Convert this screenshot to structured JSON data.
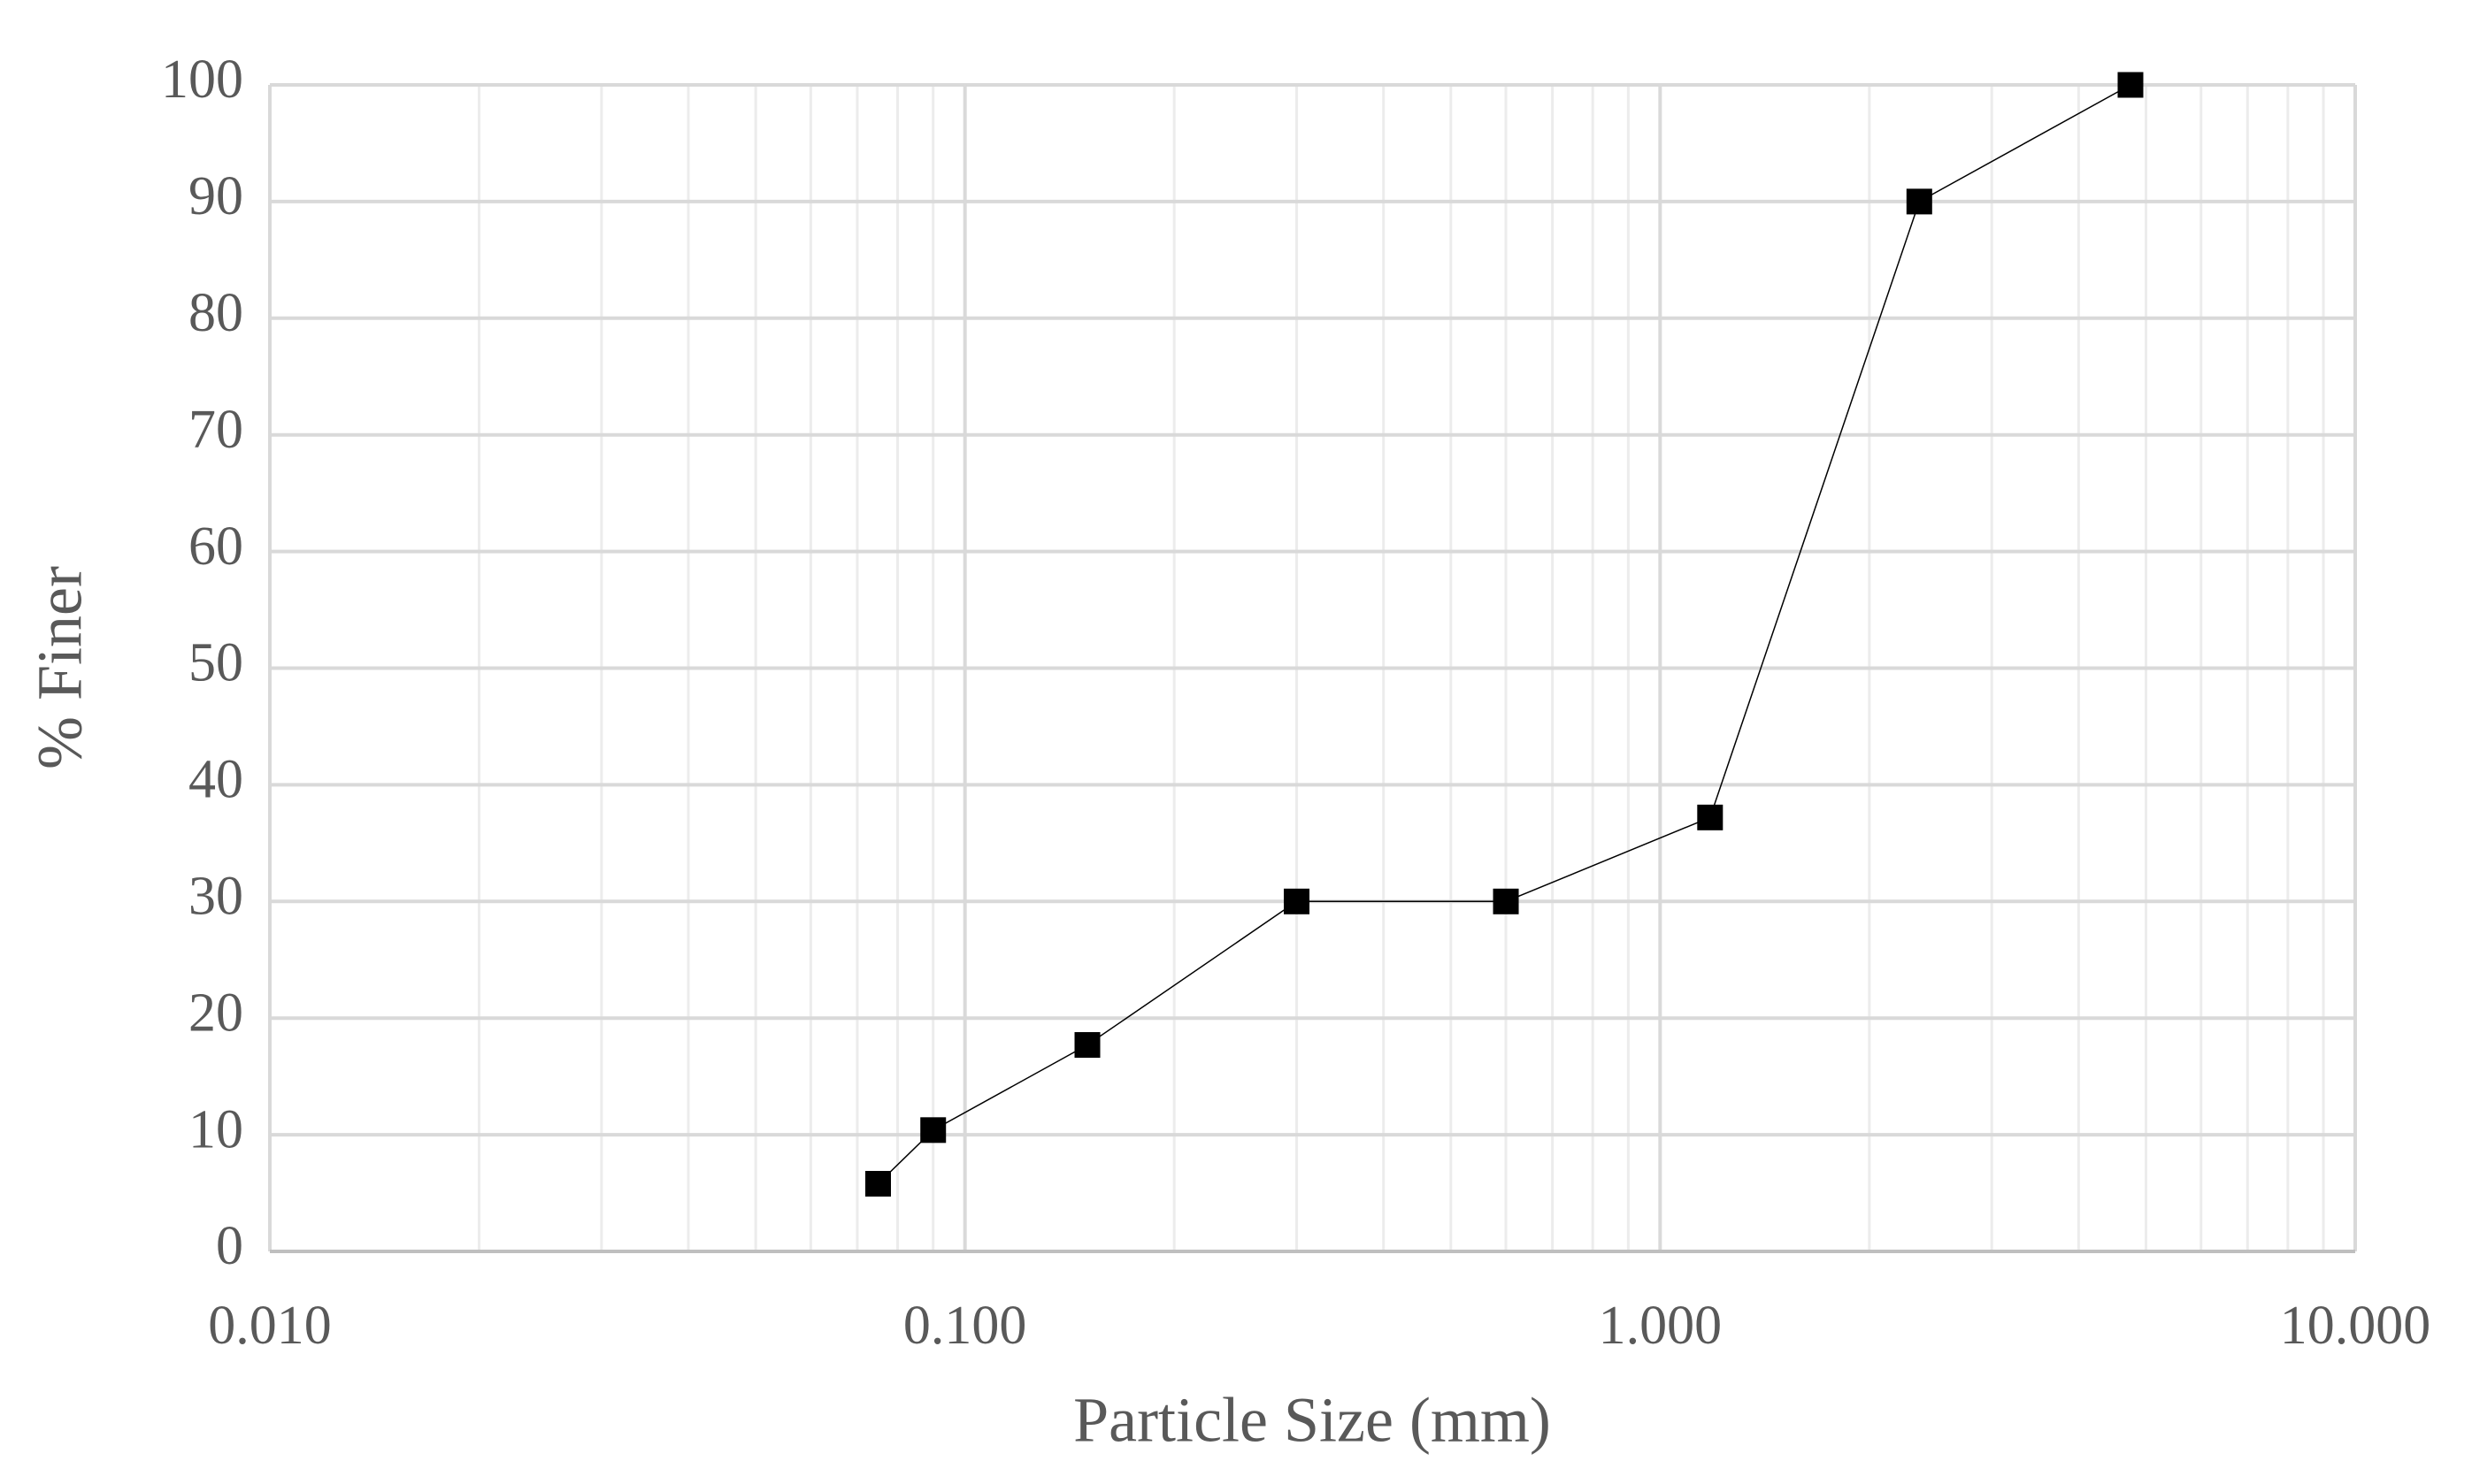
{
  "chart_data": {
    "type": "scatter",
    "x_label": "Particle Size (mm)",
    "y_label": "% Finer",
    "x": [
      0.075,
      0.09,
      0.15,
      0.3,
      0.6,
      1.18,
      2.36,
      4.75
    ],
    "series": [
      {
        "color": "#000000",
        "values": [
          5.8,
          10.4,
          17.7,
          30,
          30,
          37.2,
          90,
          100
        ]
      }
    ],
    "xscale": "log",
    "xlim": [
      0.01,
      10
    ],
    "xticks": [
      {
        "value": 0.01,
        "label": "0.010"
      },
      {
        "value": 0.1,
        "label": "0.100"
      },
      {
        "value": 1,
        "label": "1.000"
      },
      {
        "value": 10,
        "label": "10.000"
      }
    ],
    "ylim": [
      0,
      100
    ],
    "yticks": [
      0,
      10,
      20,
      30,
      40,
      50,
      60,
      70,
      80,
      90,
      100
    ],
    "grid": true,
    "minor_grid": true
  }
}
